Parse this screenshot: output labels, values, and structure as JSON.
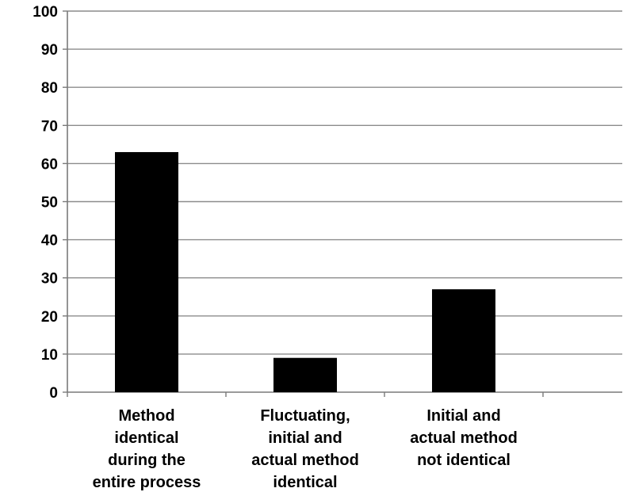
{
  "chart_data": {
    "type": "bar",
    "categories": [
      [
        "Method",
        "identical",
        "during the",
        "entire process"
      ],
      [
        "Fluctuating,",
        "initial and",
        "actual method",
        "identical"
      ],
      [
        "Initial and",
        "actual method",
        "not identical"
      ]
    ],
    "values": [
      63,
      9,
      27
    ],
    "ylim": [
      0,
      100
    ],
    "yticks": [
      0,
      10,
      20,
      30,
      40,
      50,
      60,
      70,
      80,
      90,
      100
    ],
    "grid": true,
    "legend": "none",
    "title": "",
    "xlabel": "",
    "ylabel": ""
  },
  "colors": {
    "bar": "#000000",
    "grid": "#8c8c8c",
    "axis": "#7a7a7a"
  }
}
